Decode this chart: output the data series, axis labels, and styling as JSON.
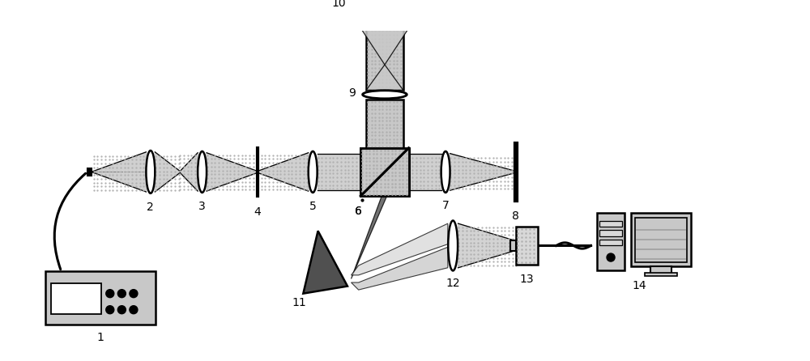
{
  "bg_color": "#ffffff",
  "light_gray": "#c8c8c8",
  "mid_gray": "#a0a0a0",
  "dark_gray": "#505050",
  "very_light_gray": "#d8d8d8",
  "dot_gray": "#b0b0b0",
  "black": "#000000",
  "label_fontsize": 10,
  "figsize": [
    10.0,
    4.46
  ],
  "dpi": 100
}
